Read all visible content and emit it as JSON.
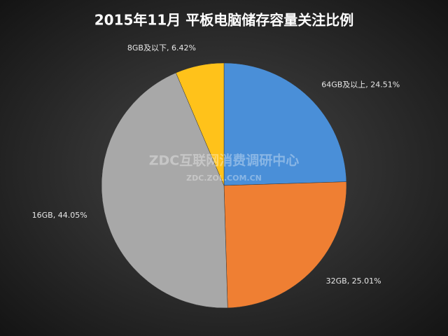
{
  "chart_data": {
    "type": "pie",
    "title": "2015年11月  平板电脑储存容量关注比例",
    "values": [
      24.51,
      25.01,
      44.05,
      6.42
    ],
    "value_labels": [
      "64GB及以上, 24.51%",
      "32GB, 25.01%",
      "16GB, 44.05%",
      "8GB及以下, 6.42%"
    ],
    "colors": [
      "#4a8fd8",
      "#ef7f33",
      "#a8a8a8",
      "#ffc21a"
    ],
    "watermark": "ZDC互联网消费调研中心",
    "watermark_url": "ZDC.ZOL.COM.CN"
  }
}
